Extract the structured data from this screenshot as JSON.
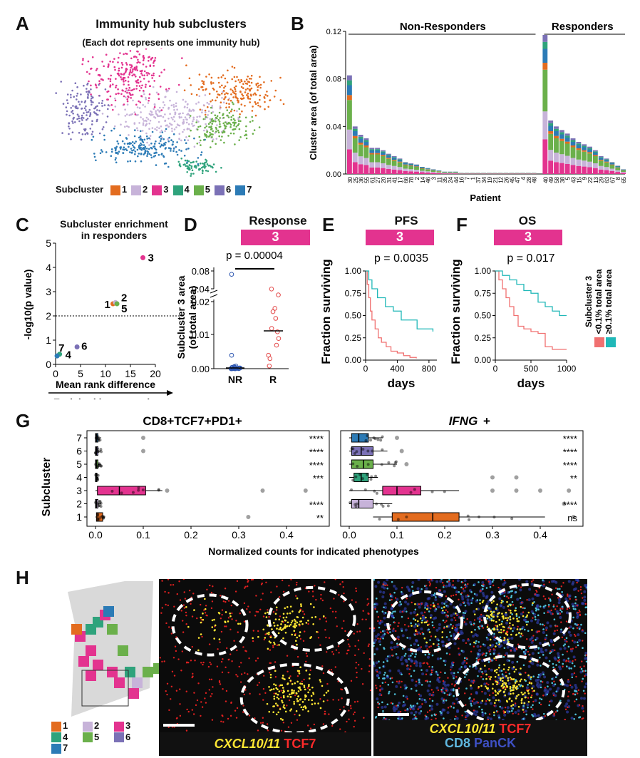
{
  "colors": {
    "c1": "#e36c1f",
    "c2": "#c7b3d9",
    "c3": "#e3338f",
    "c4": "#2fa37c",
    "c5": "#6bb04b",
    "c6": "#7b71b6",
    "c7": "#2c7bb6",
    "nr": "#2c55b0",
    "r": "#e34a4a",
    "low": "#f07070",
    "high": "#20b8b8"
  },
  "panelA": {
    "label": "A",
    "title": "Immunity hub subclusters",
    "subtitle": "(Each dot represents one immunity hub)",
    "legend_title": "Subcluster",
    "legend": [
      "1",
      "2",
      "3",
      "4",
      "5",
      "6",
      "7"
    ]
  },
  "panelB": {
    "label": "B",
    "group_nr": "Non-Responders",
    "group_r": "Responders",
    "ylabel": "Cluster area (of total area)",
    "xlabel": "Patient",
    "yticks": [
      "0.00",
      "0.04",
      "0.08",
      "0.12"
    ],
    "patients_nr": [
      "30",
      "25",
      "36",
      "55",
      "61",
      "27",
      "20",
      "31",
      "41",
      "17",
      "66",
      "78",
      "2",
      "14",
      "46",
      "3",
      "11",
      "35",
      "24",
      "44",
      "16",
      "7",
      "1",
      "37",
      "34",
      "19",
      "21",
      "12",
      "26",
      "45",
      "47",
      "4",
      "28",
      "48"
    ],
    "patients_r": [
      "40",
      "49",
      "58",
      "38",
      "5",
      "43",
      "15",
      "9",
      "22",
      "13",
      "29",
      "63",
      "67",
      "8",
      "65"
    ]
  },
  "chart_data": [
    {
      "type": "bar",
      "title": "Cluster area by patient",
      "xlabel": "Patient",
      "ylabel": "Cluster area (of total area)",
      "ylim": [
        0,
        0.12
      ],
      "categories": [
        "30",
        "25",
        "36",
        "55",
        "61",
        "27",
        "20",
        "31",
        "41",
        "17",
        "66",
        "78",
        "2",
        "14",
        "46",
        "3",
        "11",
        "35",
        "24",
        "44",
        "16",
        "7",
        "1",
        "37",
        "34",
        "19",
        "21",
        "12",
        "26",
        "45",
        "47",
        "4",
        "28",
        "48",
        "40",
        "49",
        "58",
        "38",
        "5",
        "43",
        "15",
        "9",
        "22",
        "13",
        "29",
        "63",
        "67",
        "8",
        "65"
      ],
      "totals": [
        0.083,
        0.04,
        0.033,
        0.03,
        0.022,
        0.022,
        0.02,
        0.017,
        0.015,
        0.013,
        0.01,
        0.009,
        0.008,
        0.006,
        0.005,
        0.004,
        0.003,
        0.002,
        0.002,
        0.002,
        0.001,
        0.001,
        0.001,
        0.001,
        0.001,
        0.001,
        0.001,
        0.001,
        0.001,
        0.001,
        0.001,
        0.001,
        0.001,
        0.001,
        0.117,
        0.045,
        0.04,
        0.037,
        0.034,
        0.03,
        0.027,
        0.025,
        0.023,
        0.02,
        0.015,
        0.013,
        0.01,
        0.007,
        0.004
      ]
    },
    {
      "type": "scatter",
      "title": "Subcluster enrichment in responders",
      "xlabel": "Mean rank difference",
      "ylabel": "-log10(p value)",
      "xlim": [
        0,
        20
      ],
      "ylim": [
        0,
        5
      ],
      "points": [
        {
          "name": "1",
          "x": 11.5,
          "y": 2.5
        },
        {
          "name": "2",
          "x": 12.0,
          "y": 2.55
        },
        {
          "name": "3",
          "x": 17.5,
          "y": 4.4
        },
        {
          "name": "4",
          "x": 0.8,
          "y": 0.42
        },
        {
          "name": "5",
          "x": 12.3,
          "y": 2.5
        },
        {
          "name": "6",
          "x": 4.3,
          "y": 0.72
        },
        {
          "name": "7",
          "x": 0.3,
          "y": 0.35
        }
      ],
      "threshold": 2
    },
    {
      "type": "line",
      "title": "PFS",
      "xlabel": "days",
      "ylabel": "Fraction surviving",
      "xlim": [
        0,
        900
      ],
      "ylim": [
        0,
        1
      ],
      "series": [
        {
          "name": "<0.1% total area",
          "x": [
            0,
            20,
            40,
            60,
            80,
            120,
            160,
            200,
            260,
            320,
            400,
            480,
            560,
            640
          ],
          "y": [
            1,
            0.85,
            0.7,
            0.55,
            0.45,
            0.35,
            0.25,
            0.2,
            0.15,
            0.1,
            0.08,
            0.05,
            0.03,
            0.02
          ]
        },
        {
          "name": "≥0.1% total area",
          "x": [
            0,
            40,
            80,
            150,
            250,
            350,
            450,
            550,
            650,
            750,
            850
          ],
          "y": [
            1,
            0.9,
            0.8,
            0.7,
            0.6,
            0.55,
            0.45,
            0.45,
            0.35,
            0.35,
            0.32
          ]
        }
      ]
    },
    {
      "type": "line",
      "title": "OS",
      "xlabel": "days",
      "ylabel": "Fraction surviving",
      "xlim": [
        0,
        1000
      ],
      "ylim": [
        0,
        1
      ],
      "series": [
        {
          "name": "<0.1% total area",
          "x": [
            0,
            50,
            100,
            150,
            200,
            260,
            320,
            400,
            500,
            600,
            700,
            800,
            1000
          ],
          "y": [
            1,
            0.9,
            0.8,
            0.7,
            0.6,
            0.5,
            0.38,
            0.35,
            0.32,
            0.3,
            0.15,
            0.12,
            0.12
          ]
        },
        {
          "name": "≥0.1% total area",
          "x": [
            0,
            100,
            200,
            300,
            400,
            500,
            600,
            700,
            800,
            900,
            1000
          ],
          "y": [
            1,
            0.95,
            0.9,
            0.85,
            0.78,
            0.75,
            0.65,
            0.6,
            0.55,
            0.5,
            0.5
          ]
        }
      ]
    }
  ],
  "panelC": {
    "label": "C",
    "title": "Subcluster enrichment",
    "title2": "in responders",
    "ylabel": "-log10(p value)",
    "xlabel": "Mean rank difference",
    "arrow_label": "Enriched in responders",
    "xticks": [
      "0",
      "5",
      "10",
      "15",
      "20"
    ],
    "yticks": [
      "0",
      "1",
      "2",
      "3",
      "4",
      "5"
    ]
  },
  "panelD": {
    "label": "D",
    "title": "Response",
    "pill": "3",
    "pvalue": "p = 0.00004",
    "ylabel": "Subcluster 3 area",
    "ylabel2": "(of total area)",
    "yticks_top": [
      "0.04",
      "0.08"
    ],
    "yticks_bot": [
      "0.00",
      "0.01",
      "0.02"
    ],
    "groups": [
      "NR",
      "R"
    ]
  },
  "panelE": {
    "label": "E",
    "title": "PFS",
    "pill": "3",
    "pvalue": "p = 0.0035",
    "ylabel": "Fraction surviving",
    "xlabel": "days",
    "yticks": [
      "0.00",
      "0.25",
      "0.50",
      "0.75",
      "1.00"
    ],
    "xticks": [
      "0",
      "400",
      "800"
    ]
  },
  "panelF": {
    "label": "F",
    "title": "OS",
    "pill": "3",
    "pvalue": "p = 0.017",
    "ylabel": "Fraction surviving",
    "xlabel": "days",
    "yticks": [
      "0.00",
      "0.25",
      "0.50",
      "0.75",
      "1.00"
    ],
    "xticks": [
      "0",
      "500",
      "1000"
    ],
    "legend_title": "Subcluster 3",
    "legend_low": "<0.1% total area",
    "legend_high": "≥0.1% total area"
  },
  "panelG": {
    "label": "G",
    "left_title": "CD8+TCF7+PD1+",
    "right_title": "IFNG",
    "right_title_suffix": "+",
    "ylabel": "Subcluster",
    "xlabel": "Normalized counts for indicated phenotypes",
    "rows": [
      "7",
      "6",
      "5",
      "4",
      "3",
      "2",
      "1"
    ],
    "xticks_left": [
      "0.0",
      "0.1",
      "0.2",
      "0.3",
      "0.4"
    ],
    "xticks_right": [
      "0.0",
      "0.1",
      "0.2",
      "0.3",
      "0.4"
    ],
    "sig_left": [
      "****",
      "****",
      "****",
      "***",
      "",
      "****",
      "**"
    ],
    "sig_right": [
      "****",
      "****",
      "****",
      "**",
      "",
      "****",
      "ns"
    ]
  },
  "panelH": {
    "label": "H",
    "legend": [
      "1",
      "2",
      "3",
      "4",
      "5",
      "6",
      "7"
    ],
    "caption1_a": "CXCL10/11",
    "caption1_b": "TCF7",
    "caption2_a": "CXCL10/11",
    "caption2_b": "TCF7",
    "caption2_c": "CD8",
    "caption2_d": "PanCK"
  }
}
